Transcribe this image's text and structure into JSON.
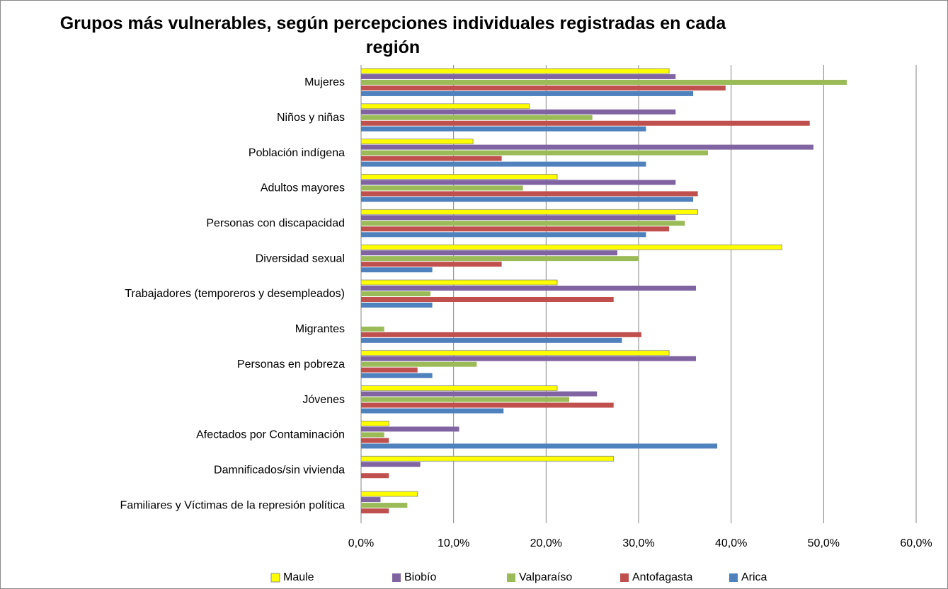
{
  "chart_data": {
    "type": "hbar",
    "title": "Grupos más vulnerables, según percepciones individuales registradas en cada región",
    "categories": [
      "Mujeres",
      "Niños y niñas",
      "Población indígena",
      "Adultos mayores",
      "Personas con discapacidad",
      "Diversidad sexual",
      "Trabajadores (temporeros y desempleados)",
      "Migrantes",
      "Personas en pobreza",
      "Jóvenes",
      "Afectados por Contaminación",
      "Damnificados/sin vivienda",
      "Familiares y Víctimas  de la represión política"
    ],
    "series": [
      {
        "name": "Maule",
        "color": "#ffff00",
        "values": [
          33.3,
          18.2,
          12.1,
          21.2,
          36.4,
          45.5,
          21.2,
          0,
          33.3,
          21.2,
          3.0,
          27.3,
          6.1
        ]
      },
      {
        "name": "Biobío",
        "color": "#8064a2",
        "values": [
          34.0,
          34.0,
          48.9,
          34.0,
          34.0,
          27.7,
          36.2,
          0,
          36.2,
          25.5,
          10.6,
          6.4,
          2.1
        ]
      },
      {
        "name": "Valparaíso",
        "color": "#9bbb59",
        "values": [
          52.5,
          25.0,
          37.5,
          17.5,
          35.0,
          30.0,
          7.5,
          2.5,
          12.5,
          22.5,
          2.5,
          0,
          5.0
        ]
      },
      {
        "name": "Antofagasta",
        "color": "#c0504d",
        "values": [
          39.4,
          48.5,
          15.2,
          36.4,
          33.3,
          15.2,
          27.3,
          30.3,
          6.1,
          27.3,
          3.0,
          3.0,
          3.0
        ]
      },
      {
        "name": "Arica",
        "color": "#4f81bd",
        "values": [
          35.9,
          30.8,
          30.8,
          35.9,
          30.8,
          7.7,
          7.7,
          28.2,
          7.7,
          15.4,
          38.5,
          0,
          0
        ]
      }
    ],
    "xlim": [
      0,
      60
    ],
    "xticks": [
      {
        "value": 0,
        "label": "0,0%"
      },
      {
        "value": 10,
        "label": "10,0%"
      },
      {
        "value": 20,
        "label": "20,0%"
      },
      {
        "value": 30,
        "label": "30,0%"
      },
      {
        "value": 40,
        "label": "40,0%"
      },
      {
        "value": 50,
        "label": "50,0%"
      },
      {
        "value": 60,
        "label": "60,0%"
      }
    ],
    "grid": true,
    "legend": "bottom"
  }
}
